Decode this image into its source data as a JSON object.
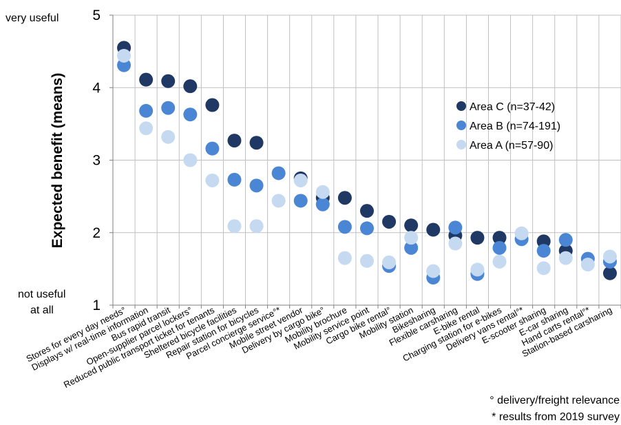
{
  "chart_data": {
    "type": "scatter",
    "ylabel": "Expected benefit (means)",
    "ylim": [
      1,
      5
    ],
    "yticks": [
      1,
      2,
      3,
      4,
      5
    ],
    "y_top_label": "very useful",
    "y_bottom_label": [
      "not useful",
      "at all"
    ],
    "grid": true,
    "legend_position": "right",
    "categories": [
      "Stores for every day needs°",
      "Displays w/ real-time information",
      "Bus rapid transit",
      "Open-supplier parcel lockers°",
      "Reduced public transport ticket for tenants",
      "Sheltered bicycle facilities",
      "Repair station for bicycles",
      "Parcel concierge service°*",
      "Mobile street vendor",
      "Delivery by cargo bike°",
      "Mobility brochure",
      "Mobility service point",
      "Cargo bike rental°",
      "Mobility station",
      "Bikesharing",
      "Flexible carsharing",
      "E-bike rental",
      "Charging station for e-bikes",
      "Delivery vans rental°*",
      "E-scooter sharing",
      "E-car sharing",
      "Hand carts rental°*",
      "Station-based carsharing"
    ],
    "series": [
      {
        "name": "Area C (n=37-42)",
        "color": "#1f3864",
        "values": [
          4.55,
          4.11,
          4.09,
          4.02,
          3.76,
          3.27,
          3.24,
          null,
          2.75,
          2.48,
          2.48,
          2.3,
          2.15,
          2.1,
          2.04,
          1.96,
          1.93,
          1.93,
          null,
          1.88,
          1.75,
          null,
          1.44
        ]
      },
      {
        "name": "Area B (n=74-191)",
        "color": "#4a86d4",
        "values": [
          4.31,
          3.68,
          3.72,
          3.63,
          3.16,
          2.73,
          2.65,
          2.82,
          2.44,
          2.39,
          2.08,
          2.06,
          1.54,
          1.79,
          1.38,
          2.07,
          1.43,
          1.79,
          1.91,
          1.75,
          1.9,
          1.64,
          1.6
        ]
      },
      {
        "name": "Area A (n=57-90)",
        "color": "#c5d9f1",
        "values": [
          4.44,
          3.44,
          3.32,
          3.0,
          2.72,
          2.09,
          2.09,
          2.44,
          2.72,
          2.56,
          1.65,
          1.61,
          1.59,
          1.93,
          1.47,
          1.85,
          1.49,
          1.6,
          1.99,
          1.51,
          1.65,
          1.56,
          1.67
        ]
      }
    ]
  },
  "footnotes": [
    "° delivery/freight relevance",
    "* results from 2019 survey"
  ]
}
